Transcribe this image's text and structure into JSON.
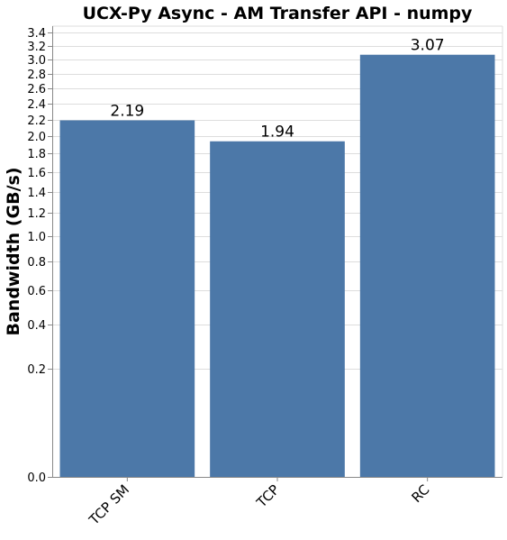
{
  "chart_data": {
    "type": "bar",
    "title": "UCX-Py Async - AM Transfer API - numpy",
    "xlabel": "",
    "ylabel": "Bandwidth (GB/s)",
    "categories": [
      "TCP SM",
      "TCP",
      "RC"
    ],
    "values": [
      2.19,
      1.94,
      3.07
    ],
    "value_labels": [
      "2.19",
      "1.94",
      "3.07"
    ],
    "y_scale": "sqrt",
    "ylim": [
      0,
      3.5
    ],
    "y_ticks": [
      0.0,
      0.2,
      0.4,
      0.6,
      0.8,
      1.0,
      1.2,
      1.4,
      1.6,
      1.8,
      2.0,
      2.2,
      2.4,
      2.6,
      2.8,
      3.0,
      3.2,
      3.4
    ],
    "y_tick_labels": [
      "0.0",
      "0.2",
      "0.4",
      "0.6",
      "0.8",
      "1.0",
      "1.2",
      "1.4",
      "1.6",
      "1.8",
      "2.0",
      "2.2",
      "2.4",
      "2.6",
      "2.8",
      "3.0",
      "3.2",
      "3.4"
    ],
    "grid": true,
    "bar_color": "#4c78a8",
    "legend": "none"
  }
}
